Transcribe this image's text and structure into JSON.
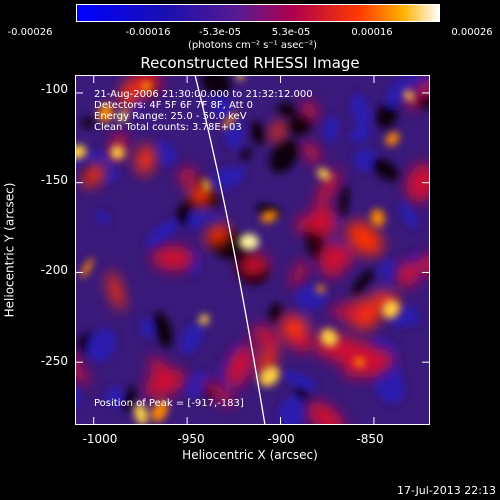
{
  "colorbar": {
    "tick_labels": [
      "-0.00026",
      "-0.00016",
      "-5.3e-05",
      "5.3e-05",
      "0.00016",
      "0.00026"
    ],
    "units": "(photons cm⁻² s⁻¹ asec⁻²)"
  },
  "plot": {
    "title": "Reconstructed RHESSI Image",
    "xlabel": "Heliocentric X (arcsec)",
    "ylabel": "Heliocentric Y (arcsec)",
    "xticks": [
      "-1000",
      "-950",
      "-900",
      "-850"
    ],
    "yticks": [
      "-100",
      "-150",
      "-200",
      "-250"
    ]
  },
  "info": {
    "line1": "21-Aug-2006 21:30:00.000 to 21:32:12.000",
    "line2": "Detectors: 4F 5F 6F 7F 8F, Att 0",
    "line3": "Energy Range: 25.0 - 50.0 keV",
    "line4": "Clean    Total counts: 3.78E+03",
    "peak": "Position of Peak = [-917,-183]"
  },
  "footer": "17-Jul-2013 22:13",
  "chart_data": {
    "type": "heatmap",
    "title": "Reconstructed RHESSI Image",
    "xlabel": "Heliocentric X (arcsec)",
    "ylabel": "Heliocentric Y (arcsec)",
    "xlim": [
      -1010,
      -820
    ],
    "ylim": [
      -285,
      -90
    ],
    "colorbar_range": [
      -0.00026,
      0.00026
    ],
    "peak_position": [
      -917,
      -183
    ],
    "colors": {
      "cold": "#2020ff",
      "mid": "#6b1fa0",
      "hot": "#ff3b00",
      "max": "#ffff60"
    }
  }
}
